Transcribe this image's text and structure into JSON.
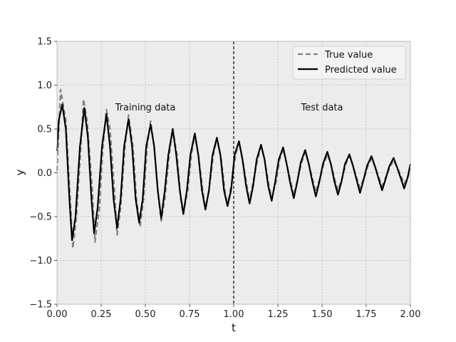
{
  "chart_data": {
    "type": "line",
    "title": "",
    "xlabel": "t",
    "ylabel": "y",
    "xlim": [
      0.0,
      2.0
    ],
    "ylim": [
      -1.5,
      1.5
    ],
    "xticks": [
      0.0,
      0.25,
      0.5,
      0.75,
      1.0,
      1.25,
      1.5,
      1.75,
      2.0
    ],
    "xtick_labels": [
      "0.00",
      "0.25",
      "0.50",
      "0.75",
      "1.00",
      "1.25",
      "1.50",
      "1.75",
      "2.00"
    ],
    "yticks": [
      1.5,
      1.0,
      0.5,
      0.0,
      -0.5,
      -1.0,
      -1.5
    ],
    "ytick_labels": [
      "1.5",
      "1.0",
      "0.5",
      "0.0",
      "−0.5",
      "−1.0",
      "−1.5"
    ],
    "grid": true,
    "legend_position": "top-right",
    "series": [
      {
        "name": "True value",
        "style": "dashed",
        "color": "#808080",
        "points": [
          [
            0.0,
            0.02
          ],
          [
            0.02,
            0.95
          ],
          [
            0.05,
            0.6
          ],
          [
            0.075,
            -0.3
          ],
          [
            0.09,
            -0.86
          ],
          [
            0.11,
            -0.5
          ],
          [
            0.135,
            0.3
          ],
          [
            0.15,
            0.84
          ],
          [
            0.17,
            0.6
          ],
          [
            0.2,
            -0.2
          ],
          [
            0.215,
            -0.79
          ],
          [
            0.24,
            -0.4
          ],
          [
            0.26,
            0.3
          ],
          [
            0.28,
            0.72
          ],
          [
            0.3,
            0.5
          ],
          [
            0.325,
            -0.2
          ],
          [
            0.34,
            -0.71
          ],
          [
            0.36,
            -0.4
          ],
          [
            0.385,
            0.3
          ],
          [
            0.405,
            0.66
          ],
          [
            0.43,
            0.3
          ],
          [
            0.45,
            -0.3
          ],
          [
            0.47,
            -0.62
          ],
          [
            0.49,
            -0.3
          ],
          [
            0.51,
            0.3
          ],
          [
            0.53,
            0.59
          ],
          [
            0.55,
            0.3
          ],
          [
            0.575,
            -0.3
          ],
          [
            0.59,
            -0.55
          ],
          [
            0.61,
            -0.3
          ],
          [
            0.635,
            0.2
          ],
          [
            0.655,
            0.5
          ],
          [
            0.68,
            0.2
          ],
          [
            0.7,
            -0.3
          ],
          [
            0.715,
            -0.47
          ],
          [
            0.74,
            -0.2
          ],
          [
            0.76,
            0.2
          ],
          [
            0.78,
            0.44
          ],
          [
            0.8,
            0.2
          ],
          [
            0.825,
            -0.2
          ],
          [
            0.84,
            -0.42
          ],
          [
            0.86,
            -0.2
          ],
          [
            0.885,
            0.2
          ],
          [
            0.905,
            0.4
          ],
          [
            0.93,
            0.15
          ],
          [
            0.95,
            -0.2
          ],
          [
            0.965,
            -0.38
          ],
          [
            0.99,
            -0.1
          ],
          [
            1.01,
            0.2
          ],
          [
            1.03,
            0.35
          ],
          [
            1.05,
            0.15
          ],
          [
            1.075,
            -0.15
          ],
          [
            1.09,
            -0.33
          ],
          [
            1.11,
            -0.1
          ],
          [
            1.135,
            0.15
          ],
          [
            1.155,
            0.3
          ],
          [
            1.175,
            0.15
          ],
          [
            1.2,
            -0.15
          ],
          [
            1.215,
            -0.29
          ],
          [
            1.24,
            -0.1
          ],
          [
            1.26,
            0.15
          ],
          [
            1.28,
            0.27
          ],
          [
            1.3,
            0.1
          ],
          [
            1.325,
            -0.12
          ],
          [
            1.34,
            -0.26
          ],
          [
            1.365,
            -0.05
          ],
          [
            1.385,
            0.12
          ],
          [
            1.405,
            0.24
          ],
          [
            1.425,
            0.1
          ],
          [
            1.45,
            -0.1
          ],
          [
            1.465,
            -0.22
          ],
          [
            1.49,
            -0.05
          ],
          [
            1.51,
            0.1
          ],
          [
            1.53,
            0.21
          ],
          [
            1.55,
            0.1
          ],
          [
            1.575,
            -0.1
          ],
          [
            1.59,
            -0.2
          ],
          [
            1.615,
            -0.05
          ],
          [
            1.635,
            0.1
          ],
          [
            1.655,
            0.19
          ],
          [
            1.675,
            0.08
          ],
          [
            1.7,
            -0.08
          ],
          [
            1.715,
            -0.17
          ],
          [
            1.74,
            -0.05
          ],
          [
            1.76,
            0.08
          ],
          [
            1.78,
            0.16
          ],
          [
            1.8,
            0.07
          ],
          [
            1.825,
            -0.07
          ],
          [
            1.84,
            -0.15
          ],
          [
            1.865,
            -0.03
          ],
          [
            1.885,
            0.07
          ],
          [
            1.905,
            0.14
          ],
          [
            1.925,
            0.06
          ],
          [
            1.95,
            -0.05
          ],
          [
            1.965,
            -0.13
          ],
          [
            1.99,
            -0.02
          ],
          [
            2.0,
            0.03
          ]
        ]
      },
      {
        "name": "Predicted value",
        "style": "solid",
        "color": "#000000",
        "points": [
          [
            0.0,
            0.25
          ],
          [
            0.01,
            0.6
          ],
          [
            0.03,
            0.78
          ],
          [
            0.05,
            0.5
          ],
          [
            0.07,
            -0.3
          ],
          [
            0.085,
            -0.77
          ],
          [
            0.105,
            -0.5
          ],
          [
            0.13,
            0.3
          ],
          [
            0.155,
            0.74
          ],
          [
            0.175,
            0.4
          ],
          [
            0.195,
            -0.3
          ],
          [
            0.21,
            -0.69
          ],
          [
            0.23,
            -0.4
          ],
          [
            0.255,
            0.3
          ],
          [
            0.28,
            0.67
          ],
          [
            0.3,
            0.3
          ],
          [
            0.32,
            -0.3
          ],
          [
            0.34,
            -0.63
          ],
          [
            0.36,
            -0.3
          ],
          [
            0.38,
            0.3
          ],
          [
            0.405,
            0.61
          ],
          [
            0.425,
            0.3
          ],
          [
            0.445,
            -0.3
          ],
          [
            0.465,
            -0.57
          ],
          [
            0.485,
            -0.3
          ],
          [
            0.505,
            0.3
          ],
          [
            0.53,
            0.55
          ],
          [
            0.55,
            0.3
          ],
          [
            0.57,
            -0.2
          ],
          [
            0.59,
            -0.52
          ],
          [
            0.61,
            -0.2
          ],
          [
            0.63,
            0.2
          ],
          [
            0.655,
            0.5
          ],
          [
            0.675,
            0.2
          ],
          [
            0.695,
            -0.2
          ],
          [
            0.715,
            -0.47
          ],
          [
            0.735,
            -0.2
          ],
          [
            0.755,
            0.2
          ],
          [
            0.78,
            0.45
          ],
          [
            0.8,
            0.2
          ],
          [
            0.82,
            -0.2
          ],
          [
            0.84,
            -0.42
          ],
          [
            0.86,
            -0.2
          ],
          [
            0.88,
            0.2
          ],
          [
            0.905,
            0.4
          ],
          [
            0.925,
            0.2
          ],
          [
            0.945,
            -0.2
          ],
          [
            0.965,
            -0.38
          ],
          [
            0.985,
            -0.2
          ],
          [
            1.005,
            0.2
          ],
          [
            1.03,
            0.36
          ],
          [
            1.05,
            0.15
          ],
          [
            1.07,
            -0.15
          ],
          [
            1.09,
            -0.35
          ],
          [
            1.11,
            -0.15
          ],
          [
            1.13,
            0.15
          ],
          [
            1.155,
            0.32
          ],
          [
            1.175,
            0.15
          ],
          [
            1.195,
            -0.15
          ],
          [
            1.215,
            -0.32
          ],
          [
            1.235,
            -0.1
          ],
          [
            1.255,
            0.15
          ],
          [
            1.28,
            0.29
          ],
          [
            1.3,
            0.1
          ],
          [
            1.32,
            -0.12
          ],
          [
            1.34,
            -0.29
          ],
          [
            1.36,
            -0.1
          ],
          [
            1.38,
            0.12
          ],
          [
            1.405,
            0.26
          ],
          [
            1.425,
            0.1
          ],
          [
            1.445,
            -0.1
          ],
          [
            1.465,
            -0.27
          ],
          [
            1.485,
            -0.1
          ],
          [
            1.505,
            0.1
          ],
          [
            1.53,
            0.24
          ],
          [
            1.55,
            0.1
          ],
          [
            1.57,
            -0.1
          ],
          [
            1.59,
            -0.25
          ],
          [
            1.61,
            -0.1
          ],
          [
            1.63,
            0.1
          ],
          [
            1.655,
            0.21
          ],
          [
            1.675,
            0.08
          ],
          [
            1.695,
            -0.08
          ],
          [
            1.715,
            -0.23
          ],
          [
            1.735,
            -0.08
          ],
          [
            1.755,
            0.08
          ],
          [
            1.78,
            0.19
          ],
          [
            1.8,
            0.07
          ],
          [
            1.82,
            -0.07
          ],
          [
            1.84,
            -0.2
          ],
          [
            1.86,
            -0.07
          ],
          [
            1.88,
            0.07
          ],
          [
            1.905,
            0.17
          ],
          [
            1.925,
            0.06
          ],
          [
            1.945,
            -0.06
          ],
          [
            1.965,
            -0.18
          ],
          [
            1.985,
            -0.05
          ],
          [
            2.0,
            0.1
          ]
        ]
      }
    ],
    "annotations": [
      {
        "text": "Training data",
        "x": 0.5,
        "y": 0.75
      },
      {
        "text": "Test data",
        "x": 1.5,
        "y": 0.75
      }
    ],
    "vline": {
      "x": 1.0,
      "style": "dashed",
      "color": "#000000"
    }
  }
}
